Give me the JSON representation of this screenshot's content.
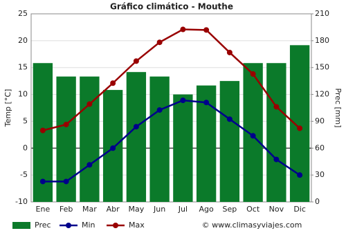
{
  "chart_data": {
    "type": "combo",
    "title": "Gráfico climático - Mouthe",
    "categories": [
      "Ene",
      "Feb",
      "Mar",
      "Abr",
      "May",
      "Jun",
      "Jul",
      "Ago",
      "Sep",
      "Oct",
      "Nov",
      "Dic"
    ],
    "series": [
      {
        "name": "Prec",
        "type": "bar",
        "axis": "y2",
        "color": "#0b7a2a",
        "values": [
          155,
          140,
          140,
          125,
          145,
          140,
          120,
          130,
          135,
          155,
          155,
          175
        ]
      },
      {
        "name": "Min",
        "type": "line",
        "color": "#00008b",
        "values": [
          -6.2,
          -6.2,
          -3.1,
          0,
          4.0,
          7.1,
          8.9,
          8.5,
          5.4,
          2.3,
          -2.1,
          -5.0
        ]
      },
      {
        "name": "Max",
        "type": "line",
        "color": "#990000",
        "values": [
          3.3,
          4.4,
          8.2,
          12.1,
          16.2,
          19.7,
          22.1,
          22.0,
          17.8,
          13.8,
          7.7,
          3.7
        ]
      }
    ],
    "ylabel": "Temp [°C]",
    "y2label": "Prec [mm]",
    "ylim": [
      -10,
      25
    ],
    "yticks": [
      -10,
      -5,
      0,
      5,
      10,
      15,
      20,
      25
    ],
    "y2lim": [
      0,
      210
    ],
    "y2ticks": [
      0,
      30,
      60,
      90,
      120,
      150,
      180,
      210
    ],
    "grid": true,
    "legend": "bottom-left",
    "credit": "© www.climasyviajes.com"
  }
}
